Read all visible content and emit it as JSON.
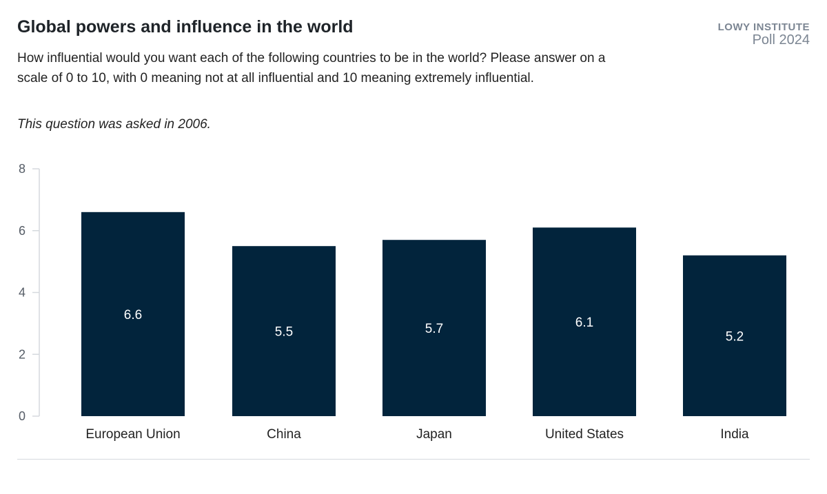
{
  "header": {
    "title": "Global powers and influence in the world",
    "subtitle": "How influential would you want each of the following countries to be in the world? Please answer on a scale of 0 to 10, with 0 meaning not at all influential and 10 meaning extremely influential.",
    "note": "This question was asked in 2006.",
    "brand_line1": "LOWY INSTITUTE",
    "brand_line2": "Poll 2024"
  },
  "chart_data": {
    "type": "bar",
    "categories": [
      "European Union",
      "China",
      "Japan",
      "United States",
      "India"
    ],
    "values": [
      6.6,
      5.5,
      5.7,
      6.1,
      5.2
    ],
    "ylim": [
      0,
      8
    ],
    "yticks": [
      0,
      2,
      4,
      6,
      8
    ],
    "grid": false,
    "bar_color": "#02243c",
    "label_color": "#ffffff",
    "axis_color": "#d5d9de"
  }
}
